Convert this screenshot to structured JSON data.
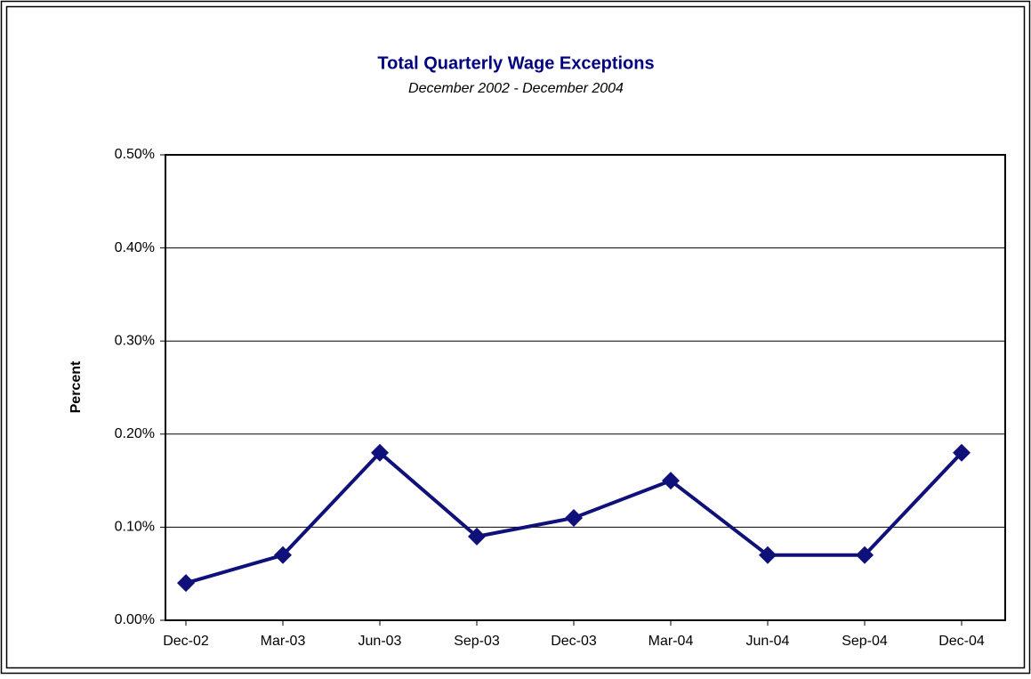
{
  "chart_data": {
    "type": "line",
    "title": "Total Quarterly Wage Exceptions",
    "subtitle": "December 2002 - December 2004",
    "y_label": "Percent",
    "categories": [
      "Dec-02",
      "Mar-03",
      "Jun-03",
      "Sep-03",
      "Dec-03",
      "Mar-04",
      "Jun-04",
      "Sep-04",
      "Dec-04"
    ],
    "series": [
      {
        "name": "Total Quarterly Wage Exceptions",
        "color": "#10107a",
        "values": [
          0.04,
          0.07,
          0.18,
          0.09,
          0.11,
          0.15,
          0.07,
          0.07,
          0.18
        ]
      }
    ],
    "ylim": [
      0,
      0.5
    ],
    "yticks": [
      {
        "value": 0,
        "label": "0.00%"
      },
      {
        "value": 0.1,
        "label": "0.10%"
      },
      {
        "value": 0.2,
        "label": "0.20%"
      },
      {
        "value": 0.3,
        "label": "0.30%"
      },
      {
        "value": 0.4,
        "label": "0.40%"
      },
      {
        "value": 0.5,
        "label": "0.50%"
      }
    ],
    "grid": true
  }
}
